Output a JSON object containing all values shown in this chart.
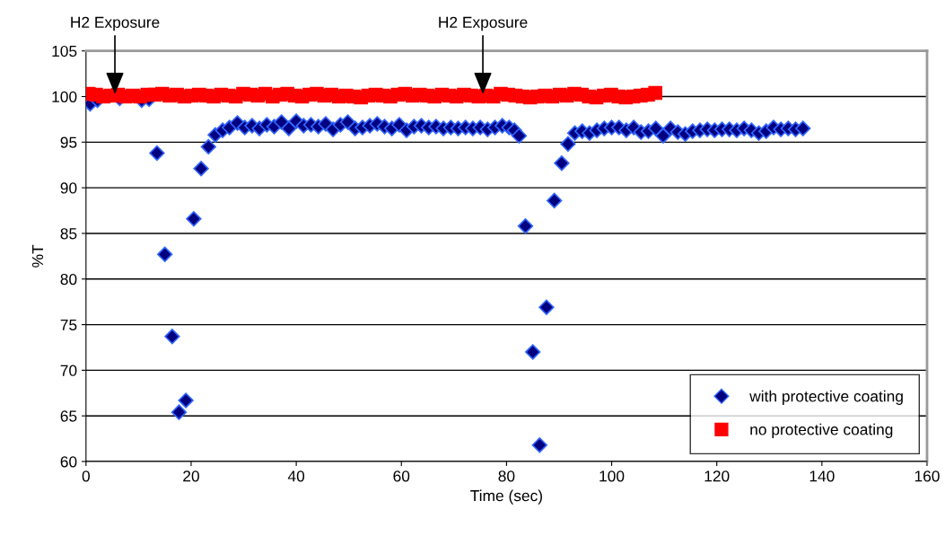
{
  "chart_data": {
    "type": "scatter",
    "xlabel": "Time (sec)",
    "ylabel": "%T",
    "xlim": [
      0,
      160
    ],
    "xticks": [
      0,
      20,
      40,
      60,
      80,
      100,
      120,
      140,
      160
    ],
    "ylim": [
      60,
      105
    ],
    "yticks": [
      60,
      65,
      70,
      75,
      80,
      85,
      90,
      95,
      100,
      105
    ],
    "grid": "y",
    "legend": "bottom right",
    "annotations": [
      {
        "text": "H2 Exposure",
        "x": 5.5,
        "y": 100
      },
      {
        "text": "H2 Exposure",
        "x": 75.5,
        "y": 100
      }
    ],
    "series": [
      {
        "name": "with protective coating",
        "color": "#000080",
        "marker": "diamond",
        "x": [
          0.8,
          2.2,
          3.6,
          5.0,
          6.4,
          7.8,
          9.2,
          10.6,
          12.0,
          13.5,
          15.0,
          16.4,
          17.7,
          19.0,
          20.5,
          21.9,
          23.3,
          24.6,
          26.0,
          27.3,
          28.8,
          30.2,
          31.6,
          33.0,
          34.4,
          35.8,
          37.2,
          38.6,
          40.0,
          41.4,
          42.8,
          44.2,
          45.6,
          47.0,
          48.4,
          49.8,
          51.2,
          52.6,
          54.0,
          55.4,
          56.8,
          58.2,
          59.6,
          61.0,
          62.4,
          63.8,
          65.2,
          66.6,
          68.0,
          69.4,
          70.8,
          72.2,
          73.6,
          75.0,
          76.4,
          77.8,
          79.2,
          80.5,
          81.5,
          82.4,
          83.6,
          85.0,
          86.3,
          87.6,
          89.1,
          90.5,
          91.7,
          93.0,
          94.4,
          95.8,
          97.2,
          98.6,
          100.0,
          101.4,
          102.8,
          104.2,
          105.6,
          107.0,
          108.4,
          109.8,
          111.2,
          112.6,
          114.0,
          115.4,
          116.8,
          118.2,
          119.6,
          121.0,
          122.4,
          123.8,
          125.2,
          126.6,
          128.0,
          129.4,
          130.8,
          132.2,
          133.6,
          135.0,
          136.4
        ],
        "values": [
          99.2,
          99.6,
          null,
          null,
          99.8,
          null,
          null,
          99.6,
          99.7,
          93.8,
          82.7,
          73.7,
          65.4,
          66.7,
          86.6,
          92.1,
          94.5,
          95.8,
          96.3,
          96.6,
          97.1,
          96.6,
          96.8,
          96.5,
          96.9,
          96.7,
          97.2,
          96.5,
          97.3,
          96.8,
          96.9,
          96.7,
          97.0,
          96.4,
          96.9,
          97.2,
          96.5,
          96.6,
          96.8,
          97.0,
          96.7,
          96.5,
          96.9,
          96.3,
          96.7,
          96.8,
          96.6,
          96.7,
          96.5,
          96.6,
          96.5,
          96.6,
          96.5,
          96.6,
          96.4,
          96.6,
          96.8,
          96.6,
          96.3,
          95.7,
          85.8,
          72.0,
          61.8,
          76.9,
          88.6,
          92.7,
          94.8,
          96.0,
          96.2,
          96.0,
          96.3,
          96.5,
          96.6,
          96.6,
          96.3,
          96.6,
          96.1,
          96.2,
          96.5,
          95.7,
          96.5,
          96.1,
          95.9,
          96.2,
          96.3,
          96.4,
          96.3,
          96.4,
          96.4,
          96.3,
          96.5,
          96.3,
          96.0,
          96.2,
          96.6,
          96.4,
          96.5,
          96.4,
          96.5
        ]
      },
      {
        "name": "no protective coating",
        "color": "#ff0000",
        "marker": "square",
        "x": [
          0.5,
          1.9,
          3.3,
          4.7,
          6.1,
          7.5,
          8.9,
          10.3,
          11.7,
          13.1,
          14.5,
          15.9,
          17.3,
          18.7,
          20.1,
          21.5,
          22.9,
          24.3,
          25.7,
          27.1,
          28.5,
          29.9,
          31.3,
          32.7,
          34.1,
          35.5,
          36.9,
          38.3,
          39.7,
          41.1,
          42.5,
          43.9,
          45.3,
          46.7,
          48.1,
          49.5,
          50.9,
          52.3,
          53.7,
          55.1,
          56.5,
          57.9,
          59.3,
          60.7,
          62.1,
          63.5,
          64.9,
          66.3,
          67.7,
          69.1,
          70.5,
          71.9,
          73.3,
          74.7,
          76.1,
          77.5,
          78.9,
          80.3,
          81.7,
          83.1,
          84.5,
          85.9,
          87.3,
          88.7,
          90.1,
          91.5,
          92.9,
          94.3,
          95.7,
          97.1,
          98.5,
          99.9,
          101.3,
          102.7,
          104.1,
          105.5,
          106.9,
          108.3
        ],
        "values": [
          100.3,
          100.2,
          100.0,
          100.1,
          100.2,
          100.0,
          100.1,
          100.0,
          100.2,
          100.2,
          100.3,
          100.1,
          100.2,
          100.0,
          100.1,
          100.2,
          100.1,
          100.0,
          100.2,
          100.1,
          100.0,
          100.3,
          100.2,
          100.1,
          100.3,
          100.0,
          100.2,
          100.3,
          100.1,
          100.0,
          100.2,
          100.3,
          100.1,
          100.2,
          100.0,
          100.1,
          100.0,
          99.9,
          100.1,
          100.2,
          100.1,
          100.0,
          100.2,
          100.3,
          100.1,
          100.2,
          100.1,
          100.0,
          100.2,
          100.1,
          100.0,
          100.2,
          100.1,
          100.0,
          100.1,
          100.0,
          100.3,
          100.2,
          100.1,
          100.0,
          99.9,
          100.0,
          100.1,
          100.0,
          100.2,
          100.1,
          100.3,
          100.2,
          100.0,
          99.9,
          100.1,
          100.2,
          100.0,
          99.9,
          100.0,
          100.1,
          100.2,
          100.4
        ]
      }
    ]
  }
}
